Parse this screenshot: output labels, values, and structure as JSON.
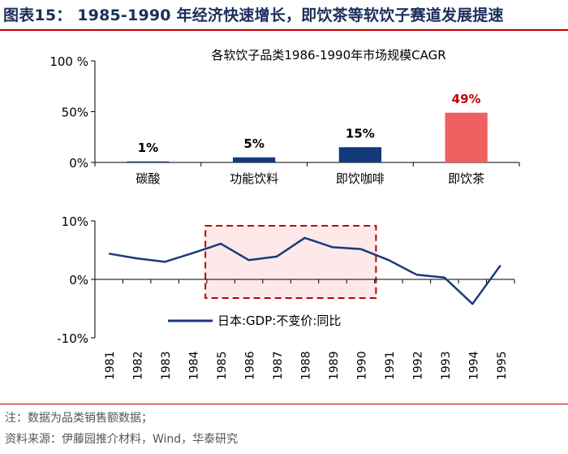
{
  "figure_title": "图表15：  1985-1990 年经济快速增长，即饮茶等软饮子赛道发展提速",
  "note": "注：数据为品类销售额数据；",
  "source": "资料来源：伊藤园推介材料，Wind，华泰研究",
  "colors": {
    "title": "#1b2f5c",
    "rule": "#c00000",
    "bar": "#123a7a",
    "highlight_bar": "#f06060",
    "highlight_label": "#c00000",
    "line": "#1b3a7a",
    "box": "#c00000",
    "box_fill": "#fde8ea"
  },
  "chart_data": [
    {
      "type": "bar",
      "title": "各软饮子品类1986-1990年市场规模CAGR",
      "categories": [
        "碳酸",
        "功能饮料",
        "即饮咖啡",
        "即饮茶"
      ],
      "values": [
        1,
        5,
        15,
        49
      ],
      "value_labels": [
        "1%",
        "5%",
        "15%",
        "49%"
      ],
      "ylim": [
        0,
        100
      ],
      "yticks": [
        0,
        50,
        100
      ],
      "ytick_labels": [
        "0%",
        "50%",
        "100 %"
      ],
      "highlight_index": 3
    },
    {
      "type": "line",
      "series": [
        {
          "name": "日本:GDP:不变价:同比",
          "values": [
            4.4,
            3.6,
            3.0,
            4.5,
            6.1,
            3.3,
            3.9,
            7.1,
            5.5,
            5.2,
            3.3,
            0.8,
            0.3,
            -4.2,
            2.4
          ]
        }
      ],
      "x": [
        "1981",
        "1982",
        "1983",
        "1984",
        "1985",
        "1986",
        "1987",
        "1988",
        "1989",
        "1990",
        "1991",
        "1992",
        "1993",
        "1994",
        "1995"
      ],
      "ylim": [
        -10,
        10
      ],
      "yticks": [
        -10,
        0,
        10
      ],
      "ytick_labels": [
        "-10%",
        "0%",
        "10%"
      ],
      "highlight_range": [
        "1985",
        "1990"
      ],
      "legend": "bottom-left"
    }
  ]
}
